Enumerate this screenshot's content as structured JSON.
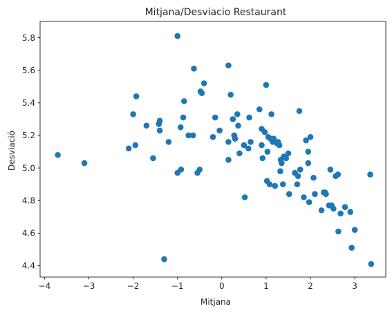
{
  "chart_data": {
    "type": "scatter",
    "title": "Mitjana/Desviacio Restaurant",
    "xlabel": "Mitjana",
    "ylabel": "Desviació",
    "xlim": [
      -4.1,
      3.7
    ],
    "ylim": [
      4.33,
      5.9
    ],
    "xticks": [
      -4,
      -3,
      -2,
      -1,
      0,
      1,
      2,
      3
    ],
    "yticks": [
      4.4,
      4.6,
      4.8,
      5.0,
      5.2,
      5.4,
      5.6,
      5.8
    ],
    "xtick_labels": [
      "−4",
      "−3",
      "−2",
      "−1",
      "0",
      "1",
      "2",
      "3"
    ],
    "ytick_labels": [
      "4.4",
      "4.6",
      "4.8",
      "5.0",
      "5.2",
      "5.4",
      "5.6",
      "5.8"
    ],
    "grid": false,
    "color": "#1f77b4",
    "points": [
      [
        -3.7,
        5.08
      ],
      [
        -3.1,
        5.03
      ],
      [
        -2.1,
        5.12
      ],
      [
        -2.0,
        5.33
      ],
      [
        -1.95,
        5.14
      ],
      [
        -1.93,
        5.44
      ],
      [
        -1.7,
        5.26
      ],
      [
        -1.55,
        5.06
      ],
      [
        -1.42,
        5.27
      ],
      [
        -1.4,
        5.29
      ],
      [
        -1.4,
        5.23
      ],
      [
        -1.3,
        4.44
      ],
      [
        -1.2,
        5.16
      ],
      [
        -1.0,
        5.81
      ],
      [
        -1.0,
        4.97
      ],
      [
        -0.93,
        5.25
      ],
      [
        -0.92,
        4.99
      ],
      [
        -0.87,
        5.31
      ],
      [
        -0.85,
        5.41
      ],
      [
        -0.75,
        5.2
      ],
      [
        -0.65,
        5.2
      ],
      [
        -0.63,
        5.61
      ],
      [
        -0.55,
        4.97
      ],
      [
        -0.5,
        4.99
      ],
      [
        -0.48,
        5.47
      ],
      [
        -0.45,
        5.46
      ],
      [
        -0.4,
        5.52
      ],
      [
        -0.2,
        5.19
      ],
      [
        -0.15,
        5.31
      ],
      [
        -0.05,
        5.23
      ],
      [
        0.15,
        5.63
      ],
      [
        0.15,
        5.16
      ],
      [
        0.15,
        5.05
      ],
      [
        0.2,
        5.45
      ],
      [
        0.25,
        5.3
      ],
      [
        0.28,
        5.2
      ],
      [
        0.3,
        5.18
      ],
      [
        0.35,
        5.33
      ],
      [
        0.37,
        5.26
      ],
      [
        0.4,
        5.09
      ],
      [
        0.5,
        5.14
      ],
      [
        0.52,
        4.82
      ],
      [
        0.6,
        5.12
      ],
      [
        0.62,
        5.31
      ],
      [
        0.65,
        5.16
      ],
      [
        0.85,
        5.36
      ],
      [
        0.9,
        5.24
      ],
      [
        0.9,
        5.14
      ],
      [
        0.92,
        5.06
      ],
      [
        0.97,
        5.22
      ],
      [
        1.0,
        5.51
      ],
      [
        1.02,
        4.92
      ],
      [
        1.03,
        5.1
      ],
      [
        1.05,
        5.19
      ],
      [
        1.08,
        4.9
      ],
      [
        1.1,
        5.18
      ],
      [
        1.12,
        5.33
      ],
      [
        1.15,
        5.16
      ],
      [
        1.17,
        5.18
      ],
      [
        1.2,
        4.89
      ],
      [
        1.25,
        5.15
      ],
      [
        1.27,
        5.16
      ],
      [
        1.3,
        5.14
      ],
      [
        1.32,
        4.98
      ],
      [
        1.33,
        5.05
      ],
      [
        1.35,
        5.03
      ],
      [
        1.38,
        4.9
      ],
      [
        1.4,
        5.07
      ],
      [
        1.45,
        5.06
      ],
      [
        1.5,
        5.09
      ],
      [
        1.52,
        4.84
      ],
      [
        1.65,
        4.97
      ],
      [
        1.7,
        4.9
      ],
      [
        1.72,
        4.95
      ],
      [
        1.75,
        5.35
      ],
      [
        1.77,
        4.99
      ],
      [
        1.85,
        4.82
      ],
      [
        1.9,
        5.17
      ],
      [
        1.95,
        5.1
      ],
      [
        1.95,
        5.03
      ],
      [
        1.97,
        4.79
      ],
      [
        2.0,
        5.19
      ],
      [
        2.07,
        4.94
      ],
      [
        2.1,
        4.84
      ],
      [
        2.25,
        4.74
      ],
      [
        2.3,
        4.85
      ],
      [
        2.33,
        4.85
      ],
      [
        2.35,
        4.84
      ],
      [
        2.42,
        4.77
      ],
      [
        2.45,
        4.99
      ],
      [
        2.48,
        4.77
      ],
      [
        2.52,
        4.75
      ],
      [
        2.57,
        4.95
      ],
      [
        2.62,
        4.96
      ],
      [
        2.63,
        4.61
      ],
      [
        2.68,
        4.72
      ],
      [
        2.78,
        4.76
      ],
      [
        2.9,
        4.73
      ],
      [
        2.93,
        4.51
      ],
      [
        3.0,
        4.62
      ],
      [
        3.35,
        4.96
      ],
      [
        3.37,
        4.41
      ]
    ]
  }
}
